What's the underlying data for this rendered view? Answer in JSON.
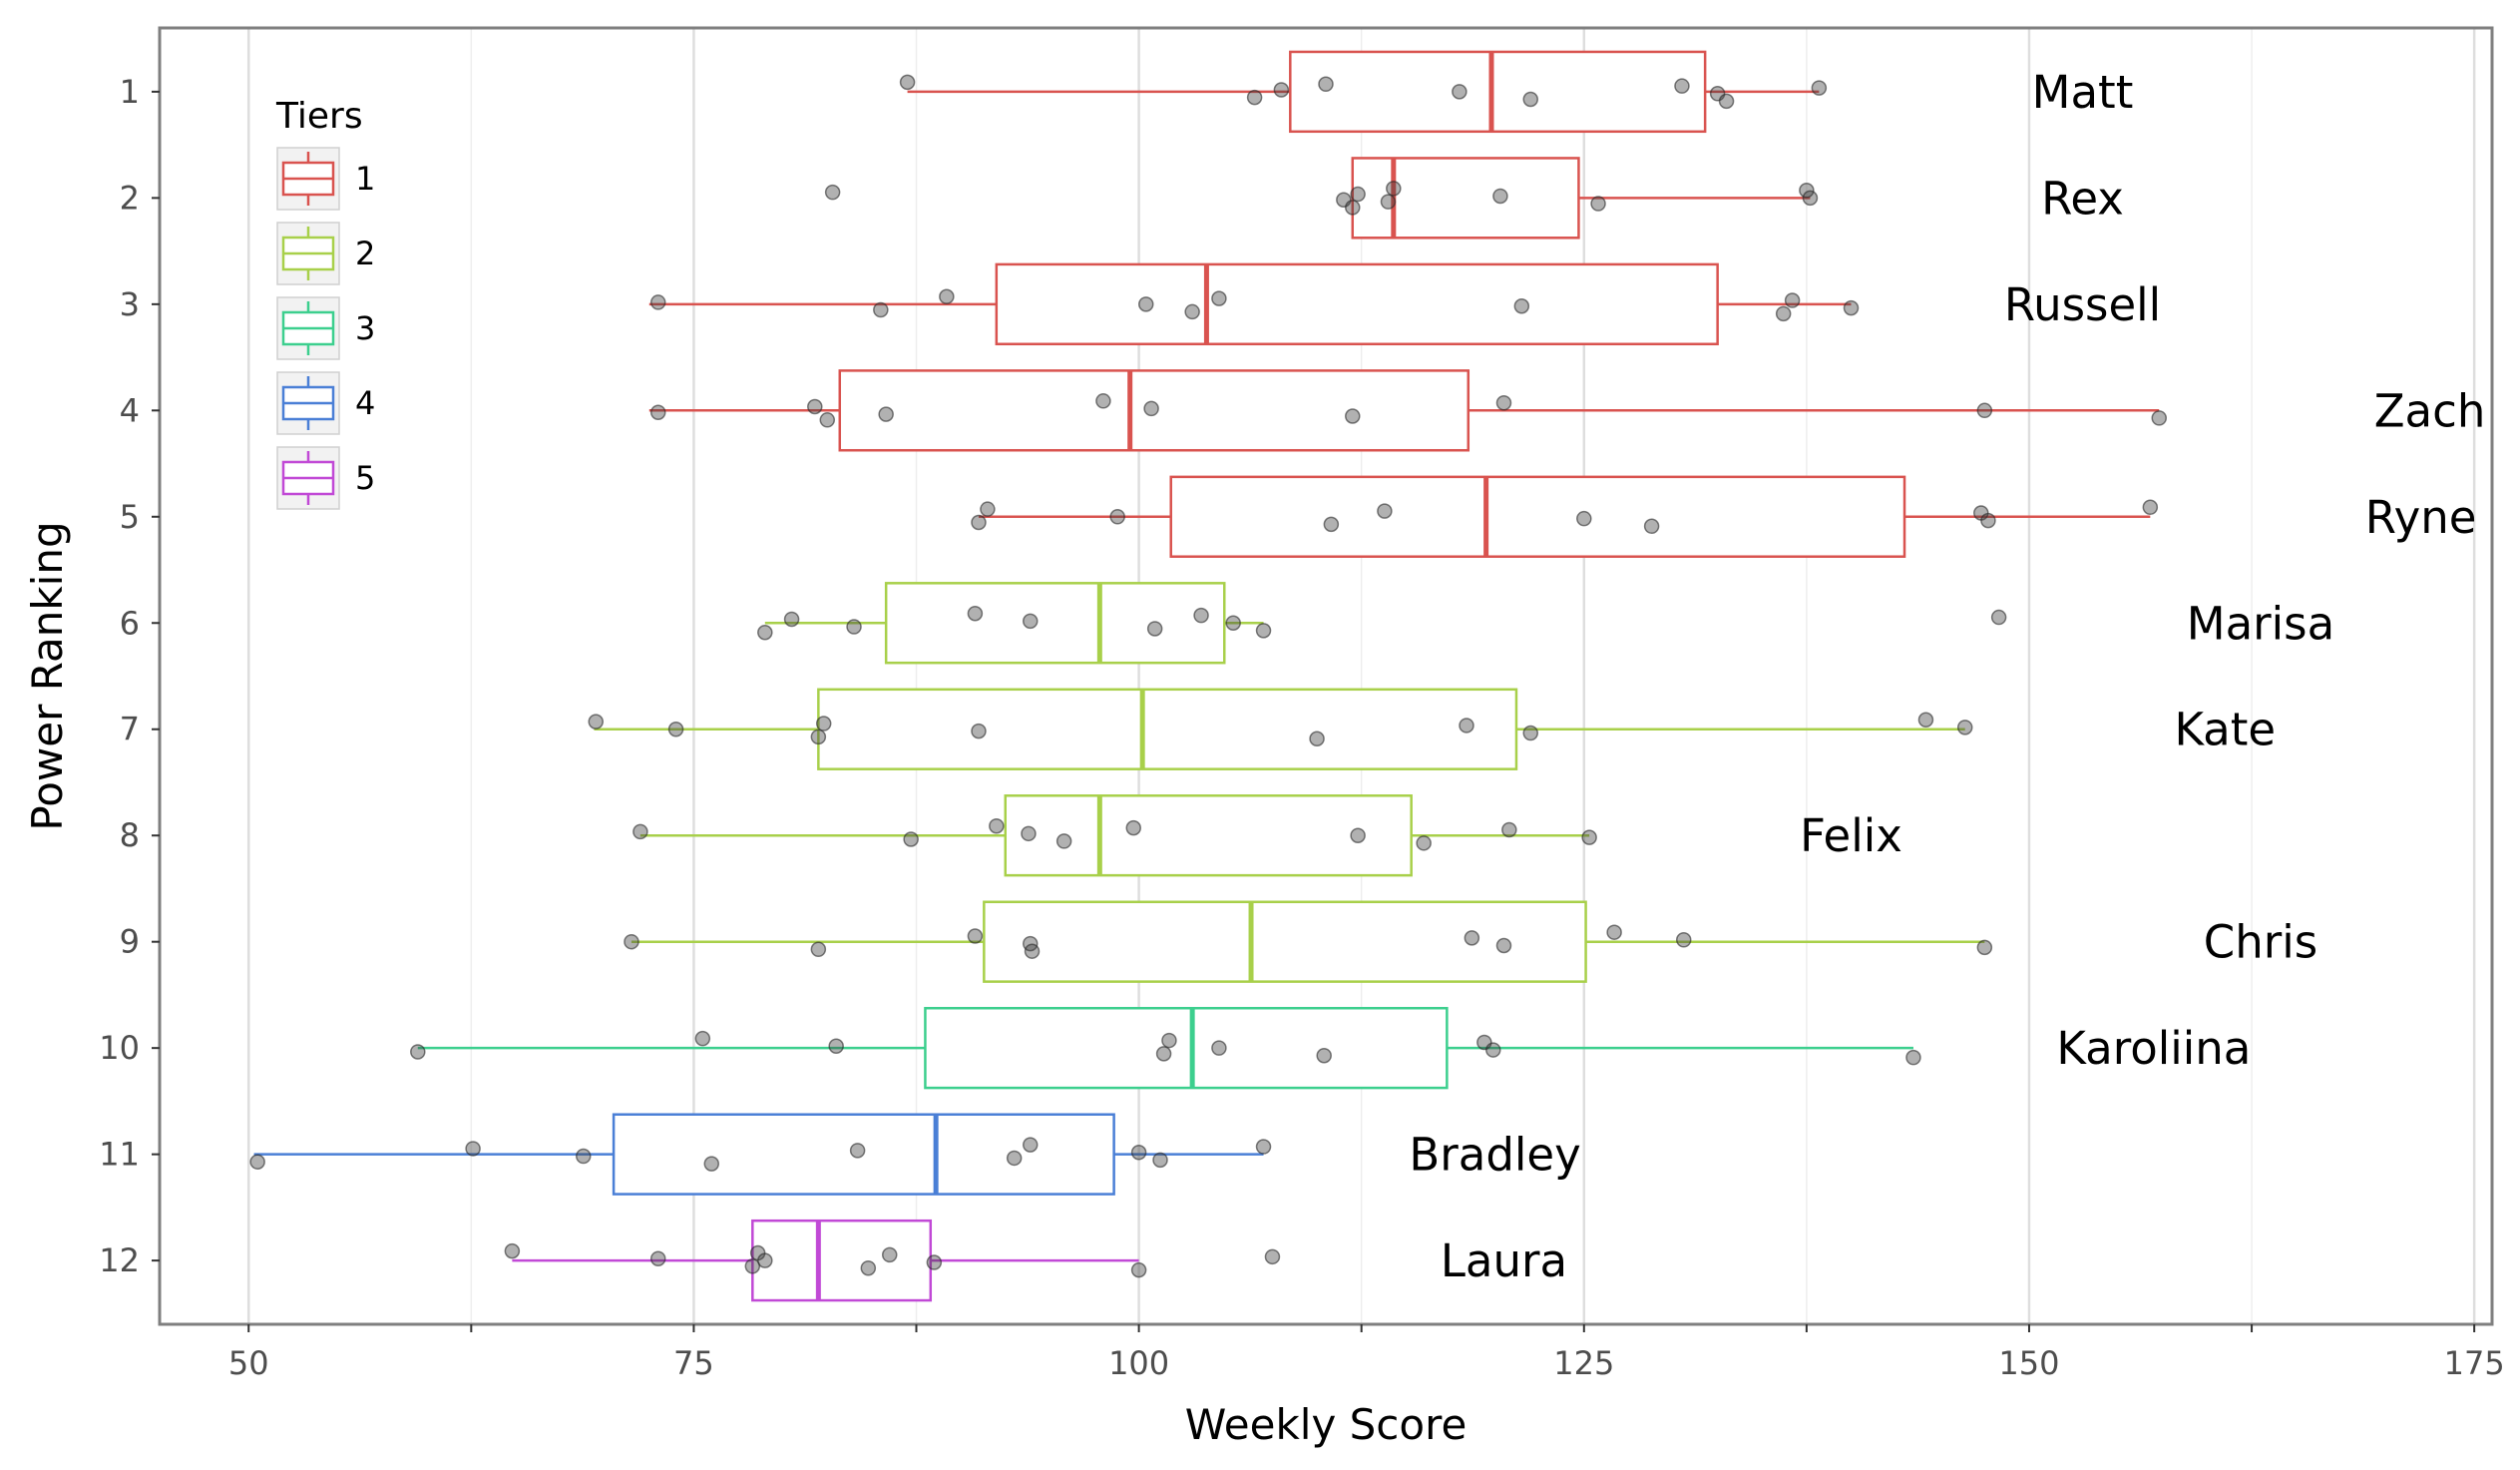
{
  "chart_data": {
    "type": "boxplot",
    "orientation": "horizontal",
    "xlabel": "Weekly Score",
    "ylabel": "Power Ranking",
    "xlim": [
      45,
      176
    ],
    "x_ticks": [
      50,
      75,
      100,
      125,
      150,
      175
    ],
    "y_ticks": [
      1,
      2,
      3,
      4,
      5,
      6,
      7,
      8,
      9,
      10,
      11,
      12
    ],
    "grid": true,
    "legend": {
      "title": "Tiers",
      "placement": "top-left",
      "entries": [
        {
          "label": "1",
          "color": "#d9534f"
        },
        {
          "label": "2",
          "color": "#a8d04a"
        },
        {
          "label": "3",
          "color": "#3ccf8e"
        },
        {
          "label": "4",
          "color": "#4a7fd6"
        },
        {
          "label": "5",
          "color": "#c149d6"
        }
      ]
    },
    "boxes": [
      {
        "rank": 1,
        "name": "Matt",
        "tier": "1",
        "whisker_low": 87,
        "q1": 108.5,
        "median": 119.8,
        "q3": 131.8,
        "whisker_high": 138.2,
        "label_x": 153,
        "points": [
          87,
          108,
          106.5,
          110.5,
          118,
          122,
          130.5,
          132.5,
          133,
          138.2
        ]
      },
      {
        "rank": 2,
        "name": "Rex",
        "tier": "1",
        "whisker_low": 112,
        "q1": 112,
        "median": 114.3,
        "q3": 124.7,
        "whisker_high": 137.7,
        "label_x": 153,
        "points": [
          82.8,
          111.5,
          112,
          112.3,
          114,
          114.3,
          120.3,
          125.8,
          137.5,
          137.7
        ]
      },
      {
        "rank": 3,
        "name": "Russell",
        "tier": "1",
        "whisker_low": 72.5,
        "q1": 92,
        "median": 103.8,
        "q3": 132.5,
        "whisker_high": 140,
        "label_x": 153,
        "points": [
          73,
          85.5,
          89.2,
          100.4,
          103,
          104.5,
          121.5,
          136.2,
          136.7,
          140
        ]
      },
      {
        "rank": 4,
        "name": "Zach",
        "tier": "1",
        "whisker_low": 72.5,
        "q1": 83.2,
        "median": 99.5,
        "q3": 118.5,
        "whisker_high": 157.3,
        "label_x": 172.5,
        "points": [
          73,
          82.5,
          81.8,
          85.8,
          98,
          100.7,
          112,
          120.5,
          147.5,
          157.3
        ]
      },
      {
        "rank": 5,
        "name": "Ryne",
        "tier": "1",
        "whisker_low": 91,
        "q1": 101.8,
        "median": 119.5,
        "q3": 143,
        "whisker_high": 156.8,
        "label_x": 172,
        "points": [
          91,
          91.5,
          98.8,
          110.8,
          113.8,
          125,
          128.8,
          147.3,
          147.7,
          156.8
        ]
      },
      {
        "rank": 6,
        "name": "Marisa",
        "tier": "2",
        "whisker_low": 79,
        "q1": 85.8,
        "median": 97.8,
        "q3": 104.8,
        "whisker_high": 107,
        "label_x": 163,
        "points": [
          79,
          80.5,
          84,
          90.8,
          93.9,
          100.9,
          103.5,
          105.3,
          107,
          148.3
        ]
      },
      {
        "rank": 7,
        "name": "Kate",
        "tier": "2",
        "whisker_low": 69.4,
        "q1": 82,
        "median": 100.2,
        "q3": 121.2,
        "whisker_high": 146.4,
        "label_x": 161,
        "points": [
          69.5,
          74,
          82,
          82.3,
          91,
          110,
          118.4,
          122,
          144.2,
          146.4
        ]
      },
      {
        "rank": 8,
        "name": "Felix",
        "tier": "2",
        "whisker_low": 72,
        "q1": 92.5,
        "median": 97.8,
        "q3": 115.3,
        "whisker_high": 125.3,
        "label_x": 140,
        "points": [
          72,
          87.2,
          92,
          93.8,
          95.8,
          99.7,
          112.3,
          116,
          120.8,
          125.3
        ]
      },
      {
        "rank": 9,
        "name": "Chris",
        "tier": "2",
        "whisker_low": 71.5,
        "q1": 91.3,
        "median": 106.3,
        "q3": 125.1,
        "whisker_high": 147.5,
        "label_x": 163,
        "points": [
          71.5,
          82,
          90.8,
          93.9,
          94,
          118.7,
          120.5,
          126.7,
          130.6,
          147.5
        ]
      },
      {
        "rank": 10,
        "name": "Karoliina",
        "tier": "3",
        "whisker_low": 59.5,
        "q1": 88,
        "median": 103,
        "q3": 117.3,
        "whisker_high": 143.5,
        "label_x": 157,
        "points": [
          59.5,
          75.5,
          83,
          101.4,
          101.7,
          104.5,
          110.4,
          119.4,
          119.9,
          143.5
        ]
      },
      {
        "rank": 11,
        "name": "Bradley",
        "tier": "4",
        "whisker_low": 50.3,
        "q1": 70.5,
        "median": 88.6,
        "q3": 98.6,
        "whisker_high": 107,
        "label_x": 120,
        "points": [
          50.5,
          62.6,
          68.8,
          76,
          84.2,
          93,
          93.9,
          100,
          101.2,
          107
        ]
      },
      {
        "rank": 12,
        "name": "Laura",
        "tier": "5",
        "whisker_low": 64.8,
        "q1": 78.3,
        "median": 82,
        "q3": 88.3,
        "whisker_high": 100,
        "label_x": 120.5,
        "points": [
          64.8,
          73,
          78.3,
          78.6,
          79,
          84.8,
          86,
          88.5,
          100,
          107.5
        ]
      }
    ]
  }
}
